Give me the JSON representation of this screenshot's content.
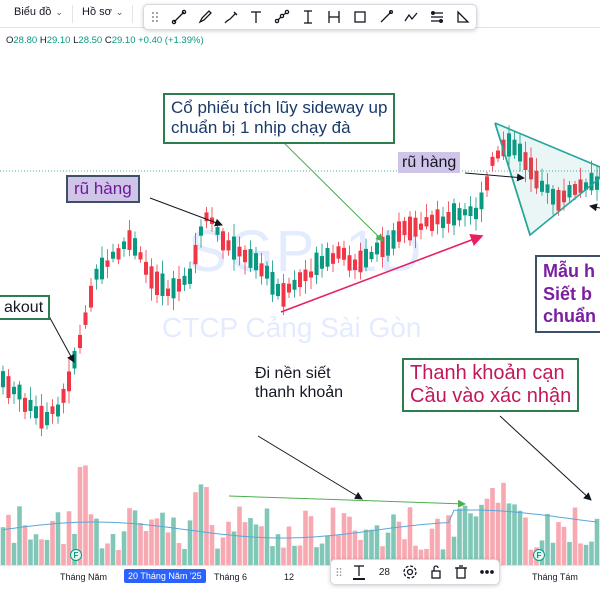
{
  "toolbar": {
    "chart_menu": "Biểu đồ",
    "profile_menu": "Hồ sơ"
  },
  "drawing_tools": [
    "trend-line",
    "brush",
    "highlighter",
    "text",
    "path",
    "range",
    "parallel",
    "rectangle",
    "line",
    "polyline",
    "fib",
    "triangle"
  ],
  "legend": {
    "open_label": "O",
    "open": "28.80",
    "high_label": "H",
    "high": "29.10",
    "low_label": "L",
    "low": "28.50",
    "close_label": "C",
    "close": "29.10",
    "change": "+0.40 (+1.39%)"
  },
  "watermark": {
    "symbol": "SGP, 1D",
    "company": "CTCP Cảng Sài Gòn"
  },
  "annotations": {
    "sideway": "Cổ phiếu tích lũy sideway up\nchuẩn bị 1 nhịp chạy đà",
    "shakeout_left": "rũ hàng",
    "shakeout_right": "rũ hàng",
    "breakout": "akout",
    "base": "Đi nền siết\nthanh khoản",
    "liquidity": "Thanh khoản cạn\nCầu vào xác nhận",
    "pattern": "Mẫu h\nSiết b\nchuẩn"
  },
  "colors": {
    "up": "#089981",
    "up_light": "#81c7b8",
    "down": "#f23645",
    "down_light": "#f7a8b0",
    "volume_ma": "#5aa7d8",
    "arrow_dark": "#131722",
    "arrow_pink": "#e91e63",
    "arrow_green": "#4caf50",
    "triangle": "#26a69a"
  },
  "time_axis": {
    "labels": [
      "Tháng Năm",
      "20 Tháng Năm '25",
      "Tháng 6",
      "12",
      "Tháng Tám"
    ],
    "active_index": 1
  },
  "text_toolbar": {
    "font_size": "28"
  },
  "events": [
    "F",
    "F"
  ]
}
